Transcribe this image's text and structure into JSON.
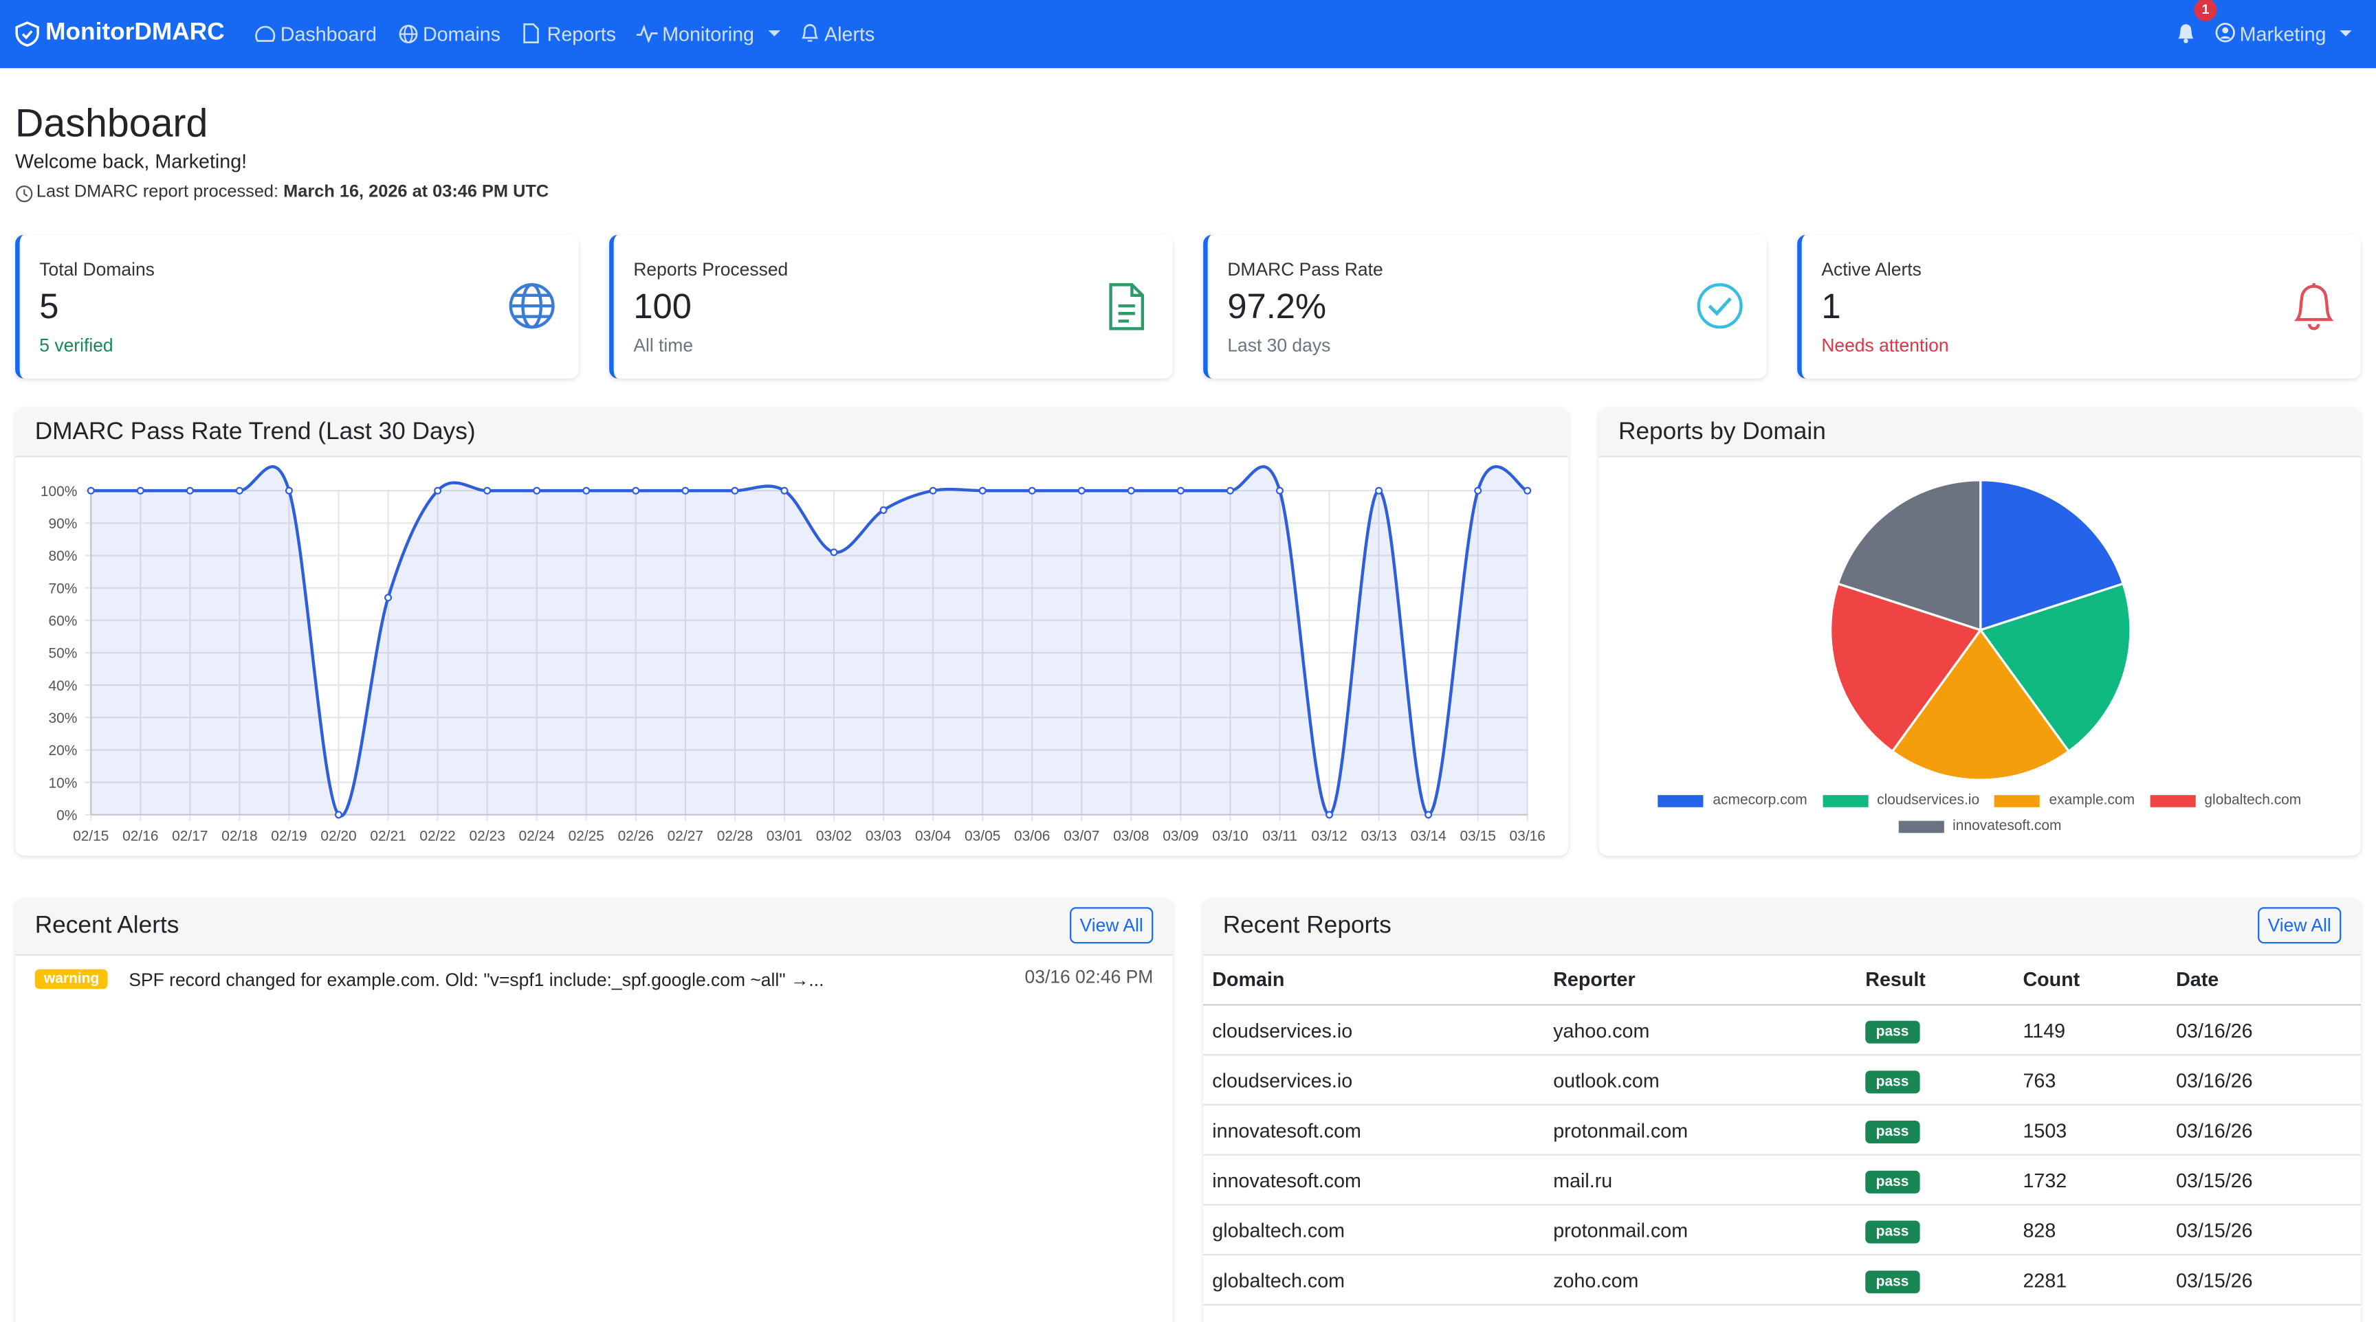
{
  "nav": {
    "brand": "MonitorDMARC",
    "items": [
      "Dashboard",
      "Domains",
      "Reports",
      "Monitoring",
      "Alerts"
    ],
    "badge": "1",
    "user": "Marketing"
  },
  "header": {
    "title": "Dashboard",
    "welcome": "Welcome back, Marketing!",
    "last_label": "Last DMARC report processed:",
    "last_value": "March 16, 2026 at 03:46 PM UTC"
  },
  "stats": [
    {
      "label": "Total Domains",
      "value": "5",
      "sub": "5 verified"
    },
    {
      "label": "Reports Processed",
      "value": "100",
      "sub": "All time"
    },
    {
      "label": "DMARC Pass Rate",
      "value": "97.2%",
      "sub": "Last 30 days"
    },
    {
      "label": "Active Alerts",
      "value": "1",
      "sub": "Needs attention"
    }
  ],
  "chart_data": [
    {
      "type": "line",
      "title": "DMARC Pass Rate Trend (Last 30 Days)",
      "categories": [
        "02/15",
        "02/16",
        "02/17",
        "02/18",
        "02/19",
        "02/20",
        "02/21",
        "02/22",
        "02/23",
        "02/24",
        "02/25",
        "02/26",
        "02/27",
        "02/28",
        "03/01",
        "03/02",
        "03/03",
        "03/04",
        "03/05",
        "03/06",
        "03/07",
        "03/08",
        "03/09",
        "03/10",
        "03/11",
        "03/12",
        "03/13",
        "03/14",
        "03/15",
        "03/16"
      ],
      "values": [
        100,
        100,
        100,
        100,
        100,
        0,
        67,
        100,
        100,
        100,
        100,
        100,
        100,
        100,
        100,
        81,
        94,
        100,
        100,
        100,
        100,
        100,
        100,
        100,
        100,
        0,
        100,
        0,
        100,
        100
      ],
      "color": "#2f5fd8",
      "ylim": [
        0,
        100
      ],
      "yticks": [
        {
          "value": 0,
          "label": "0%"
        },
        {
          "value": 10,
          "label": "10%"
        },
        {
          "value": 20,
          "label": "20%"
        },
        {
          "value": 30,
          "label": "30%"
        },
        {
          "value": 40,
          "label": "40%"
        },
        {
          "value": 50,
          "label": "50%"
        },
        {
          "value": 60,
          "label": "60%"
        },
        {
          "value": 70,
          "label": "70%"
        },
        {
          "value": 80,
          "label": "80%"
        },
        {
          "value": 90,
          "label": "90%"
        },
        {
          "value": 100,
          "label": "100%"
        }
      ],
      "grid": true
    },
    {
      "type": "pie",
      "title": "Reports by Domain",
      "categories": [
        "acmecorp.com",
        "cloudservices.io",
        "example.com",
        "globaltech.com",
        "innovatesoft.com"
      ],
      "values": [
        20,
        20,
        20,
        20,
        20
      ],
      "colors": [
        "#2563eb",
        "#10b981",
        "#f59e0b",
        "#ef4444",
        "#6b7280"
      ]
    }
  ],
  "alerts": {
    "title": "Recent Alerts",
    "view_all": "View All",
    "items": [
      {
        "level": "warning",
        "message": "SPF record changed for example.com. Old: \"v=spf1 include:_spf.google.com ~all\" →...",
        "time": "03/16 02:46 PM"
      }
    ]
  },
  "reports": {
    "title": "Recent Reports",
    "view_all": "View All",
    "columns": [
      "Domain",
      "Reporter",
      "Result",
      "Count",
      "Date"
    ],
    "rows": [
      [
        "cloudservices.io",
        "yahoo.com",
        "pass",
        "1149",
        "03/16/26"
      ],
      [
        "cloudservices.io",
        "outlook.com",
        "pass",
        "763",
        "03/16/26"
      ],
      [
        "innovatesoft.com",
        "protonmail.com",
        "pass",
        "1503",
        "03/16/26"
      ],
      [
        "innovatesoft.com",
        "mail.ru",
        "pass",
        "1732",
        "03/15/26"
      ],
      [
        "globaltech.com",
        "protonmail.com",
        "pass",
        "828",
        "03/15/26"
      ],
      [
        "globaltech.com",
        "zoho.com",
        "pass",
        "2281",
        "03/15/26"
      ]
    ]
  }
}
